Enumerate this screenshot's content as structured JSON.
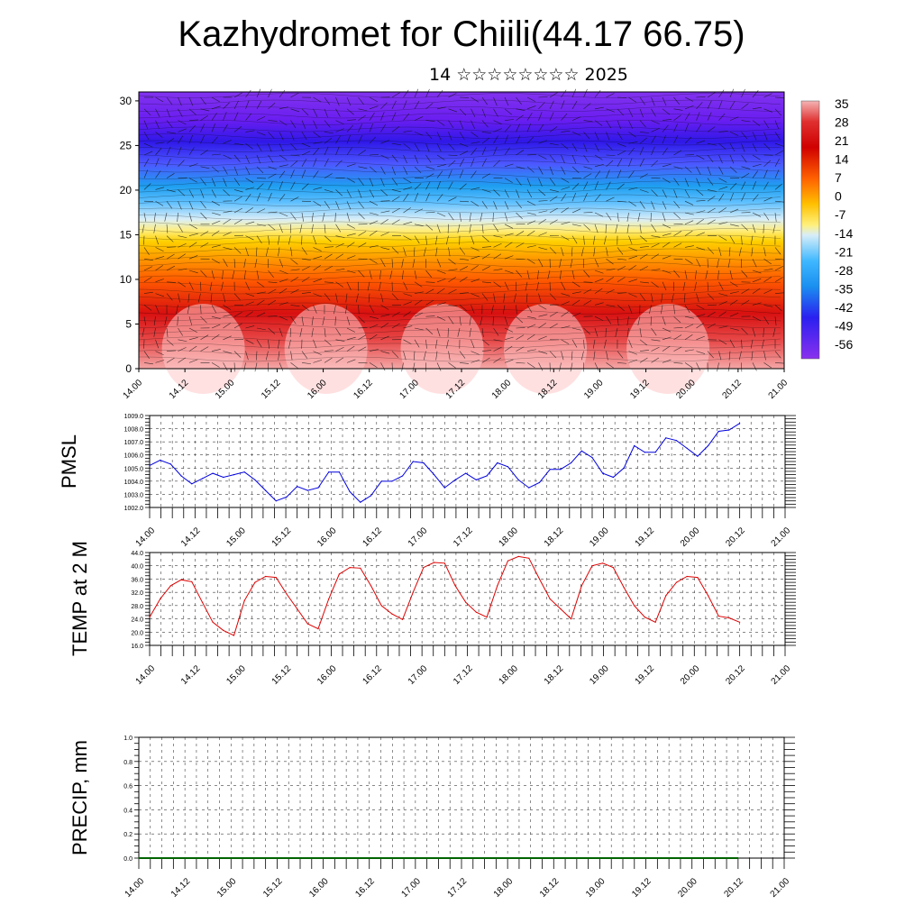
{
  "header": {
    "title": "Kazhydromet for Chiili(44.17 66.75)",
    "subtitle": "14 ☆☆☆☆☆☆☆☆ 2025"
  },
  "time_ticks": [
    "14.00",
    "14.12",
    "15.00",
    "15.12",
    "16.00",
    "16.12",
    "17.00",
    "17.12",
    "18.00",
    "18.12",
    "19.00",
    "19.12",
    "20.00",
    "20.12",
    "21.00"
  ],
  "chart_data": [
    {
      "type": "heatmap",
      "name": "cross-section",
      "title": "",
      "xlabel": "",
      "ylabel": "",
      "x_ticks": [
        "14.00",
        "14.12",
        "15.00",
        "15.12",
        "16.00",
        "16.12",
        "17.00",
        "17.12",
        "18.00",
        "18.12",
        "19.00",
        "19.12",
        "20.00",
        "20.12",
        "21.00"
      ],
      "y_ticks": [
        0,
        5,
        10,
        15,
        20,
        25,
        30
      ],
      "ylim": [
        0,
        31
      ],
      "colorbar_labels": [
        "35",
        "28",
        "21",
        "14",
        "7",
        "0",
        "-7",
        "-14",
        "-21",
        "-28",
        "-35",
        "-42",
        "-49",
        "-56"
      ],
      "overlay": "wind barbs"
    },
    {
      "type": "line",
      "name": "pmsl",
      "ylabel": "PMSL",
      "y_ticks": [
        "1002.0",
        "1003.0",
        "1004.0",
        "1005.0",
        "1006.0",
        "1007.0",
        "1008.0",
        "1009.0"
      ],
      "ylim": [
        1002,
        1009
      ],
      "line_color": "#0000dd",
      "x_index_step_hours": 3,
      "values": [
        1005.2,
        1005.6,
        1005.3,
        1004.4,
        1003.8,
        1004.2,
        1004.6,
        1004.3,
        1004.5,
        1004.7,
        1004.1,
        1003.3,
        1002.5,
        1002.8,
        1003.6,
        1003.3,
        1003.5,
        1004.7,
        1004.7,
        1003.2,
        1002.4,
        1002.9,
        1004.0,
        1004.0,
        1004.4,
        1005.5,
        1005.4,
        1004.5,
        1003.5,
        1004.1,
        1004.6,
        1004.1,
        1004.4,
        1005.4,
        1005.1,
        1004.1,
        1003.5,
        1003.9,
        1004.9,
        1004.9,
        1005.4,
        1006.3,
        1005.8,
        1004.6,
        1004.3,
        1005.0,
        1006.7,
        1006.2,
        1006.2,
        1007.3,
        1007.1,
        1006.5,
        1005.9,
        1006.7,
        1007.8,
        1007.9,
        1008.4
      ]
    },
    {
      "type": "line",
      "name": "temp2m",
      "ylabel": "TEMP at 2 M",
      "y_ticks": [
        "16.0",
        "20.0",
        "24.0",
        "28.0",
        "32.0",
        "36.0",
        "40.0",
        "44.0"
      ],
      "ylim": [
        16,
        44
      ],
      "line_color": "#dd0000",
      "x_index_step_hours": 3,
      "values": [
        24.5,
        30,
        34,
        35.8,
        35.2,
        29,
        23,
        20.5,
        19,
        29.5,
        35,
        36.8,
        36.5,
        31.5,
        27,
        22.5,
        21,
        30,
        37.5,
        39.5,
        39.3,
        34,
        28,
        25.5,
        23.8,
        32,
        39.5,
        41,
        40.8,
        34,
        29,
        26,
        24.5,
        34,
        41.5,
        42.8,
        42.3,
        36,
        30,
        27,
        24,
        34,
        40,
        40.8,
        39.5,
        33.5,
        28,
        24.5,
        23,
        31,
        35,
        36.8,
        36.5,
        31,
        24.8,
        24.3,
        23
      ]
    },
    {
      "type": "line",
      "name": "precip",
      "ylabel": "PRECIP, mm",
      "y_ticks": [
        "0.0",
        "0.2",
        "0.4",
        "0.6",
        "0.8",
        "1.0"
      ],
      "ylim": [
        0,
        1
      ],
      "line_color": "#006400",
      "x_index_step_hours": 3,
      "values": [
        0,
        0,
        0,
        0,
        0,
        0,
        0,
        0,
        0,
        0,
        0,
        0,
        0,
        0,
        0,
        0,
        0,
        0,
        0,
        0,
        0,
        0,
        0,
        0,
        0,
        0,
        0,
        0,
        0,
        0,
        0,
        0,
        0,
        0,
        0,
        0,
        0,
        0,
        0,
        0,
        0,
        0,
        0,
        0,
        0,
        0,
        0,
        0,
        0,
        0,
        0,
        0,
        0,
        0,
        0,
        0,
        0
      ]
    }
  ]
}
